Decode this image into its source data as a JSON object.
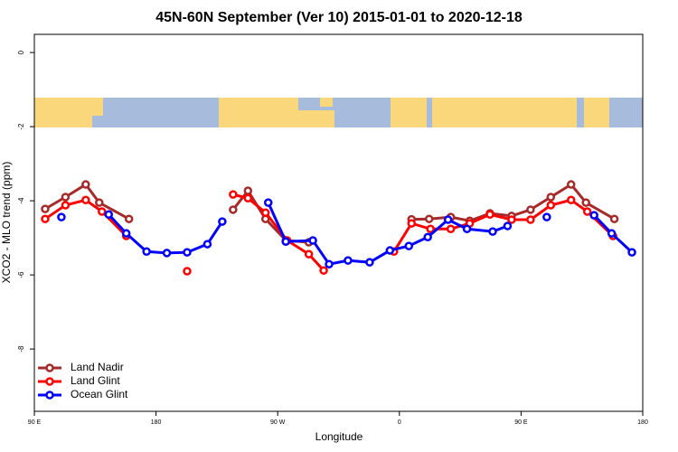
{
  "chart_data": {
    "type": "line",
    "title": "45N-60N September (Ver 10)   2015-01-01 to 2020-12-18",
    "x_label": "Longitude",
    "y_label": "XCO2 - MLO trend (ppm)",
    "xlim": [
      90,
      540
    ],
    "ylim": [
      -9.68,
      0.49
    ],
    "xticks": [
      {
        "value": 90,
        "label": "90 E"
      },
      180,
      {
        "value": 270,
        "label": "90 W"
      },
      {
        "value": 360,
        "label": "0"
      },
      {
        "value": 450,
        "label": "90 E"
      },
      {
        "value": 540,
        "label": "180"
      }
    ],
    "yticks": [
      0,
      -2,
      -4,
      -6,
      -8
    ],
    "legend": "bottom-left",
    "series": [
      {
        "name": "Land Nadir",
        "color": "#a52a2a",
        "x": [
          98,
          113,
          128,
          138,
          160,
          null,
          237,
          248,
          261,
          276,
          293,
          null,
          369,
          382,
          398,
          412,
          427,
          443,
          457,
          472,
          487,
          498,
          519
        ],
        "values": [
          -4.22,
          -3.9,
          -3.56,
          -4.05,
          -4.49,
          null,
          -4.24,
          -3.73,
          -4.49,
          -5.07,
          -5.12,
          null,
          -4.5,
          -4.49,
          -4.44,
          -4.54,
          -4.34,
          -4.41,
          -4.24,
          -3.9,
          -3.56,
          -4.05,
          -4.49
        ]
      },
      {
        "name": "Land Glint",
        "color": "#ff0000",
        "x": [
          98,
          113,
          128,
          140,
          158,
          null,
          203,
          null,
          237,
          248,
          261,
          277,
          293,
          304,
          null,
          356,
          369,
          383,
          398,
          412,
          427,
          443,
          457,
          472,
          487,
          499,
          518
        ],
        "values": [
          -4.49,
          -4.12,
          -3.98,
          -4.29,
          -4.95,
          null,
          -5.9,
          null,
          -3.83,
          -3.93,
          -4.32,
          -5.07,
          -5.44,
          -5.88,
          null,
          -5.37,
          -4.61,
          -4.76,
          -4.76,
          -4.61,
          -4.37,
          -4.51,
          -4.51,
          -4.12,
          -3.98,
          -4.29,
          -4.95
        ]
      },
      {
        "name": "Ocean Glint",
        "color": "#0000ff",
        "x": [
          110,
          null,
          145,
          158,
          173,
          188,
          203,
          218,
          229,
          null,
          263,
          276,
          296,
          308,
          322,
          338,
          353,
          367,
          381,
          396,
          410,
          429,
          440,
          null,
          469,
          null,
          504,
          517,
          532
        ],
        "values": [
          -4.44,
          null,
          -4.37,
          -4.88,
          -5.37,
          -5.41,
          -5.39,
          -5.17,
          -4.56,
          null,
          -4.05,
          -5.1,
          -5.07,
          -5.71,
          -5.61,
          -5.66,
          -5.34,
          -5.22,
          -4.98,
          -4.51,
          -4.76,
          -4.83,
          -4.68,
          null,
          -4.44,
          null,
          -4.39,
          -4.88,
          -5.39
        ]
      }
    ]
  }
}
